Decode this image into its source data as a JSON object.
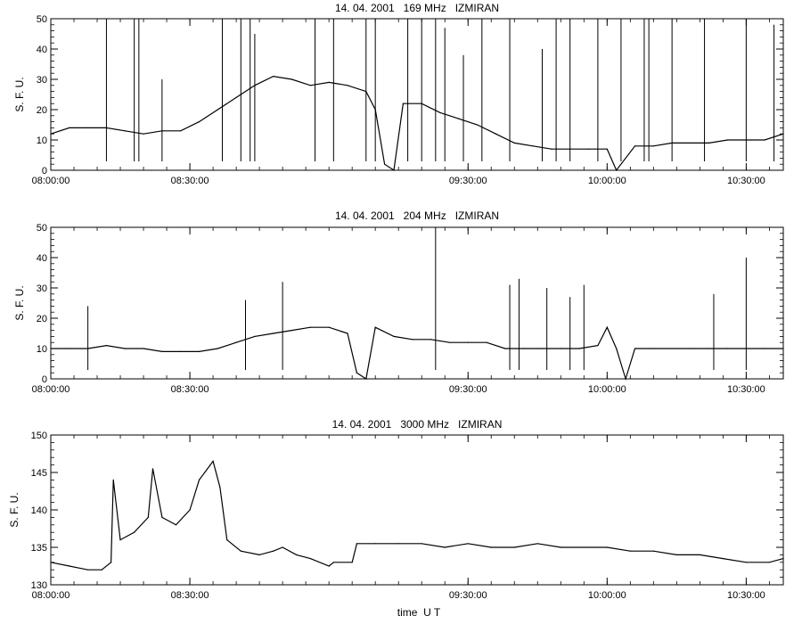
{
  "chart_data": [
    {
      "type": "line",
      "title": "14. 04. 2001   169 MHz   IZMIRAN",
      "xlabel": "",
      "ylabel": "S. F. U.",
      "x_unit": "time UT",
      "xlim": [
        "08:00:00",
        "10:38:00"
      ],
      "ylim": [
        0,
        50
      ],
      "yticks": [
        0,
        10,
        20,
        30,
        40,
        50
      ],
      "xticks": [
        "08:00:00",
        "08:30:00",
        "09:30:00",
        "10:00:00",
        "10:30:00"
      ],
      "grid": false,
      "series": [
        {
          "x": [
            "08:00:00",
            "08:04:00",
            "08:08:00",
            "08:12:00",
            "08:16:00",
            "08:20:00",
            "08:24:00",
            "08:28:00",
            "08:32:00",
            "08:36:00",
            "08:40:00",
            "08:44:00",
            "08:48:00",
            "08:52:00",
            "08:56:00",
            "09:00:00",
            "09:04:00",
            "09:08:00",
            "09:10:00",
            "09:12:00",
            "09:14:00",
            "09:16:00",
            "09:20:00",
            "09:24:00",
            "09:28:00",
            "09:32:00",
            "09:36:00",
            "09:40:00",
            "09:44:00",
            "09:48:00",
            "09:52:00",
            "09:56:00",
            "10:00:00",
            "10:02:00",
            "10:06:00",
            "10:10:00",
            "10:14:00",
            "10:18:00",
            "10:22:00",
            "10:26:00",
            "10:30:00",
            "10:34:00",
            "10:38:00"
          ],
          "values": [
            12,
            14,
            14,
            14,
            13,
            12,
            13,
            13,
            16,
            20,
            24,
            28,
            31,
            30,
            28,
            29,
            28,
            26,
            20,
            2,
            0,
            22,
            22,
            19,
            17,
            15,
            12,
            9,
            8,
            7,
            7,
            7,
            7,
            0,
            8,
            8,
            9,
            9,
            9,
            10,
            10,
            10,
            12
          ]
        }
      ],
      "spikes": [
        {
          "x": "08:12:00",
          "y": 50
        },
        {
          "x": "08:18:00",
          "y": 50
        },
        {
          "x": "08:19:00",
          "y": 50
        },
        {
          "x": "08:24:00",
          "y": 30
        },
        {
          "x": "08:37:00",
          "y": 50
        },
        {
          "x": "08:41:00",
          "y": 50
        },
        {
          "x": "08:43:00",
          "y": 50
        },
        {
          "x": "08:44:00",
          "y": 45
        },
        {
          "x": "08:57:00",
          "y": 50
        },
        {
          "x": "09:01:00",
          "y": 50
        },
        {
          "x": "09:08:00",
          "y": 50
        },
        {
          "x": "09:10:00",
          "y": 50
        },
        {
          "x": "09:17:00",
          "y": 50
        },
        {
          "x": "09:20:00",
          "y": 50
        },
        {
          "x": "09:23:00",
          "y": 50
        },
        {
          "x": "09:25:00",
          "y": 47
        },
        {
          "x": "09:29:00",
          "y": 38
        },
        {
          "x": "09:33:00",
          "y": 50
        },
        {
          "x": "09:39:00",
          "y": 50
        },
        {
          "x": "09:46:00",
          "y": 40
        },
        {
          "x": "09:49:00",
          "y": 50
        },
        {
          "x": "09:52:00",
          "y": 50
        },
        {
          "x": "09:58:00",
          "y": 50
        },
        {
          "x": "10:03:00",
          "y": 50
        },
        {
          "x": "10:08:00",
          "y": 50
        },
        {
          "x": "10:09:00",
          "y": 50
        },
        {
          "x": "10:14:00",
          "y": 50
        },
        {
          "x": "10:21:00",
          "y": 50
        },
        {
          "x": "10:30:00",
          "y": 50
        },
        {
          "x": "10:36:00",
          "y": 48
        }
      ]
    },
    {
      "type": "line",
      "title": "14. 04. 2001   204 MHz   IZMIRAN",
      "xlabel": "",
      "ylabel": "S. F. U.",
      "x_unit": "time UT",
      "xlim": [
        "08:00:00",
        "10:38:00"
      ],
      "ylim": [
        0,
        50
      ],
      "yticks": [
        0,
        10,
        20,
        30,
        40,
        50
      ],
      "xticks": [
        "08:00:00",
        "08:30:00",
        "09:30:00",
        "10:00:00",
        "10:30:00"
      ],
      "grid": false,
      "series": [
        {
          "x": [
            "08:00:00",
            "08:04:00",
            "08:08:00",
            "08:12:00",
            "08:16:00",
            "08:20:00",
            "08:24:00",
            "08:28:00",
            "08:32:00",
            "08:36:00",
            "08:40:00",
            "08:44:00",
            "08:48:00",
            "08:52:00",
            "08:56:00",
            "09:00:00",
            "09:04:00",
            "09:06:00",
            "09:08:00",
            "09:10:00",
            "09:14:00",
            "09:18:00",
            "09:22:00",
            "09:26:00",
            "09:30:00",
            "09:34:00",
            "09:38:00",
            "09:42:00",
            "09:46:00",
            "09:50:00",
            "09:54:00",
            "09:58:00",
            "10:00:00",
            "10:02:00",
            "10:04:00",
            "10:06:00",
            "10:10:00",
            "10:14:00",
            "10:18:00",
            "10:22:00",
            "10:26:00",
            "10:30:00",
            "10:34:00",
            "10:38:00"
          ],
          "values": [
            10,
            10,
            10,
            11,
            10,
            10,
            9,
            9,
            9,
            10,
            12,
            14,
            15,
            16,
            17,
            17,
            15,
            2,
            0,
            17,
            14,
            13,
            13,
            12,
            12,
            12,
            10,
            10,
            10,
            10,
            10,
            11,
            17,
            10,
            0,
            10,
            10,
            10,
            10,
            10,
            10,
            10,
            10,
            10
          ]
        }
      ],
      "spikes": [
        {
          "x": "08:08:00",
          "y": 24
        },
        {
          "x": "08:42:00",
          "y": 26
        },
        {
          "x": "08:50:00",
          "y": 32
        },
        {
          "x": "09:23:00",
          "y": 50
        },
        {
          "x": "09:39:00",
          "y": 31
        },
        {
          "x": "09:41:00",
          "y": 33
        },
        {
          "x": "09:47:00",
          "y": 30
        },
        {
          "x": "09:52:00",
          "y": 27
        },
        {
          "x": "09:55:00",
          "y": 31
        },
        {
          "x": "10:23:00",
          "y": 28
        },
        {
          "x": "10:30:00",
          "y": 40
        }
      ]
    },
    {
      "type": "line",
      "title": "14. 04. 2001   3000 MHz   IZMIRAN",
      "xlabel": "time  U T",
      "ylabel": "S. F. U.",
      "x_unit": "time UT",
      "xlim": [
        "08:00:00",
        "10:38:00"
      ],
      "ylim": [
        130,
        150
      ],
      "yticks": [
        130,
        135,
        140,
        145,
        150
      ],
      "xticks": [
        "08:00:00",
        "08:30:00",
        "09:30:00",
        "10:00:00",
        "10:30:00"
      ],
      "grid": false,
      "series": [
        {
          "x": [
            "08:00:00",
            "08:04:00",
            "08:08:00",
            "08:11:00",
            "08:13:00",
            "08:13:30",
            "08:15:00",
            "08:18:00",
            "08:21:00",
            "08:22:00",
            "08:24:00",
            "08:27:00",
            "08:30:00",
            "08:32:00",
            "08:35:00",
            "08:36:30",
            "08:38:00",
            "08:41:00",
            "08:45:00",
            "08:48:00",
            "08:50:00",
            "08:53:00",
            "08:56:00",
            "09:00:00",
            "09:01:00",
            "09:05:00",
            "09:06:00",
            "09:10:00",
            "09:15:00",
            "09:20:00",
            "09:25:00",
            "09:30:00",
            "09:35:00",
            "09:40:00",
            "09:45:00",
            "09:50:00",
            "09:55:00",
            "10:00:00",
            "10:05:00",
            "10:10:00",
            "10:15:00",
            "10:20:00",
            "10:25:00",
            "10:30:00",
            "10:35:00",
            "10:38:00"
          ],
          "values": [
            133,
            132.5,
            132,
            132,
            133,
            144,
            136,
            137,
            139,
            145.5,
            139,
            138,
            140,
            144,
            146.5,
            143,
            136,
            134.5,
            134,
            134.5,
            135,
            134,
            133.5,
            132.5,
            133,
            133,
            135.5,
            135.5,
            135.5,
            135.5,
            135,
            135.5,
            135,
            135,
            135.5,
            135,
            135,
            135,
            134.5,
            134.5,
            134,
            134,
            133.5,
            133,
            133,
            133.5
          ]
        }
      ]
    }
  ]
}
